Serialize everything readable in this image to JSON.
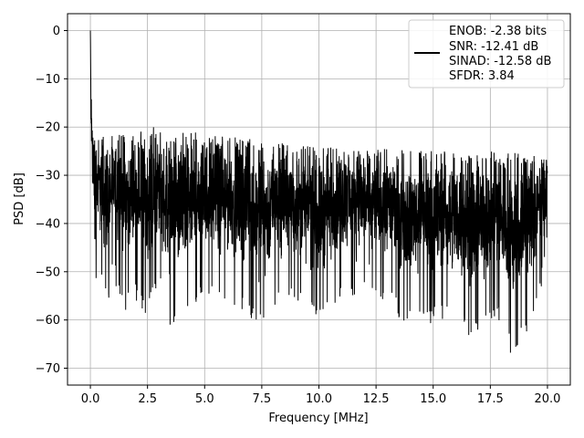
{
  "chart_data": {
    "type": "line",
    "title": "",
    "xlabel": "Frequency [MHz]",
    "ylabel": "PSD [dB]",
    "xlim": [
      -1.0,
      21.0
    ],
    "ylim": [
      -73.5,
      3.5
    ],
    "xticks": [
      0.0,
      2.5,
      5.0,
      7.5,
      10.0,
      12.5,
      15.0,
      17.5,
      20.0
    ],
    "xtick_labels": [
      "0.0",
      "2.5",
      "5.0",
      "7.5",
      "10.0",
      "12.5",
      "15.0",
      "17.5",
      "20.0"
    ],
    "yticks": [
      0,
      -10,
      -20,
      -30,
      -40,
      -50,
      -60,
      -70
    ],
    "ytick_labels": [
      "0",
      "−10",
      "−20",
      "−30",
      "−40",
      "−50",
      "−60",
      "−70"
    ],
    "grid": true,
    "line_color": "#000000",
    "series": [
      {
        "x": [
          0.0,
          0.02,
          0.04,
          0.06,
          0.08,
          0.1,
          0.12,
          0.15,
          0.18,
          0.22,
          0.26,
          0.3,
          0.35,
          0.4,
          0.5,
          0.6,
          0.8,
          1.0,
          1.5,
          2.0,
          2.5,
          3.0,
          3.5,
          4.0,
          5.0,
          6.0,
          7.0,
          7.7,
          8.0,
          9.0,
          10.0,
          11.0,
          12.0,
          13.0,
          14.0,
          15.0,
          16.0,
          16.7,
          17.0,
          17.5,
          18.0,
          18.5,
          19.0,
          19.5,
          20.0
        ],
        "envelope_upper": [
          0.0,
          -8,
          -12,
          -13,
          -14,
          -16,
          -17,
          -18,
          -19,
          -20,
          -20.5,
          -21,
          -21.5,
          -21.5,
          -22,
          -22,
          -21.5,
          -22,
          -21,
          -22,
          -19,
          -21,
          -21.5,
          -20.5,
          -21.5,
          -22,
          -22.5,
          -23,
          -23,
          -24,
          -24,
          -24.5,
          -25,
          -24.5,
          -25,
          -24.5,
          -25.5,
          -25.5,
          -26,
          -25,
          -26,
          -25,
          -26,
          -26,
          -27
        ],
        "envelope_lower": [
          -5,
          -30,
          -36,
          -40,
          -42,
          -45,
          -48,
          -50,
          -55,
          -59,
          -52,
          -51,
          -52,
          -53,
          -51,
          -55,
          -57,
          -51,
          -59,
          -56,
          -60,
          -53,
          -61.5,
          -63,
          -55,
          -57,
          -60,
          -63.5,
          -58,
          -57,
          -61.5,
          -55,
          -56,
          -57,
          -62,
          -61,
          -60,
          -65,
          -63,
          -61,
          -60,
          -70,
          -63,
          -60,
          -46
        ]
      }
    ],
    "legend": {
      "position": "top-right",
      "entries": [
        "ENOB: -2.38 bits",
        "SNR: -12.41 dB",
        "SINAD: -12.58 dB",
        "SFDR: 3.84"
      ]
    }
  }
}
